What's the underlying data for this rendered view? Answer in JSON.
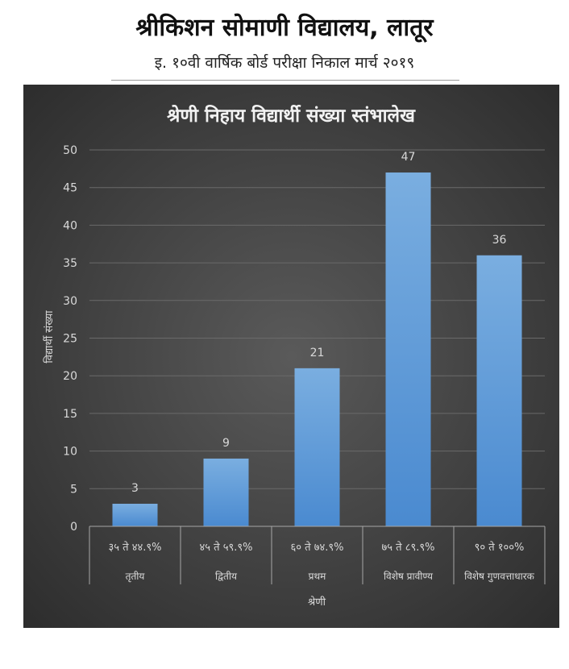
{
  "header": {
    "school": "श्रीकिशन सोमाणी विद्यालय, लातूर",
    "subtitle": "इ. १०वी वार्षिक बोर्ड परीक्षा निकाल मार्च २०१९"
  },
  "chart_data": {
    "type": "bar",
    "title": "श्रेणी निहाय विद्यार्थी संख्या स्तंभालेख",
    "ylabel": "विद्यार्थी संख्या",
    "xlabel": "श्रेणी",
    "ylim": [
      0,
      50
    ],
    "yticks": [
      0,
      5,
      10,
      15,
      20,
      25,
      30,
      35,
      40,
      45,
      50
    ],
    "categories": [
      {
        "range": "३५ ते ४४.९%",
        "grade": "तृतीय"
      },
      {
        "range": "४५ ते ५९.९%",
        "grade": "द्वितीय"
      },
      {
        "range": "६० ते ७४.९%",
        "grade": "प्रथम"
      },
      {
        "range": "७५ ते ८९.९%",
        "grade": "विशेष प्रावीण्य"
      },
      {
        "range": "९० ते १००%",
        "grade": "विशेष गुणवत्ताधारक"
      }
    ],
    "values": [
      3,
      9,
      21,
      47,
      36
    ],
    "grid": true,
    "legend": "none",
    "colors": {
      "bar": "#5b9bd5",
      "bar_light": "#7aaee0",
      "background_center": "#5a5a5a",
      "background_edge": "#2a2a2a",
      "grid": "#6a6a6a",
      "text": "#d9d9d9",
      "title": "#f2f2f2"
    }
  }
}
